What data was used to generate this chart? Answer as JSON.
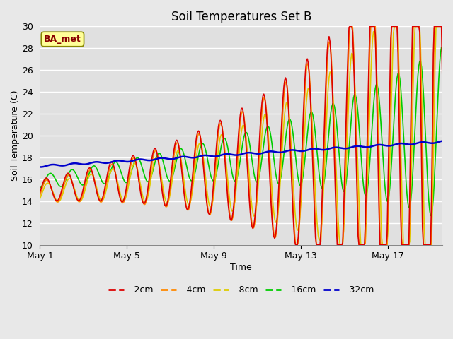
{
  "title": "Soil Temperatures Set B",
  "xlabel": "Time",
  "ylabel": "Soil Temperature (C)",
  "ylim": [
    10,
    30
  ],
  "yticks": [
    10,
    12,
    14,
    16,
    18,
    20,
    22,
    24,
    26,
    28,
    30
  ],
  "xtick_labels": [
    "May 1",
    "May 5",
    "May 9",
    "May 13",
    "May 17"
  ],
  "xtick_positions": [
    0,
    4,
    8,
    12,
    16
  ],
  "bg_color": "#e0e0e0",
  "fig_bg_color": "#e8e8e8",
  "line_colors": {
    "2cm": "#dd0000",
    "4cm": "#ff8800",
    "8cm": "#ddcc00",
    "16cm": "#00cc00",
    "32cm": "#0000cc"
  },
  "legend_labels": [
    "-2cm",
    "-4cm",
    "-8cm",
    "-16cm",
    "-32cm"
  ],
  "annotation_text": "BA_met",
  "annotation_box_color": "#ffff99",
  "annotation_text_color": "#880000",
  "n_days": 19,
  "pts_per_day": 24
}
